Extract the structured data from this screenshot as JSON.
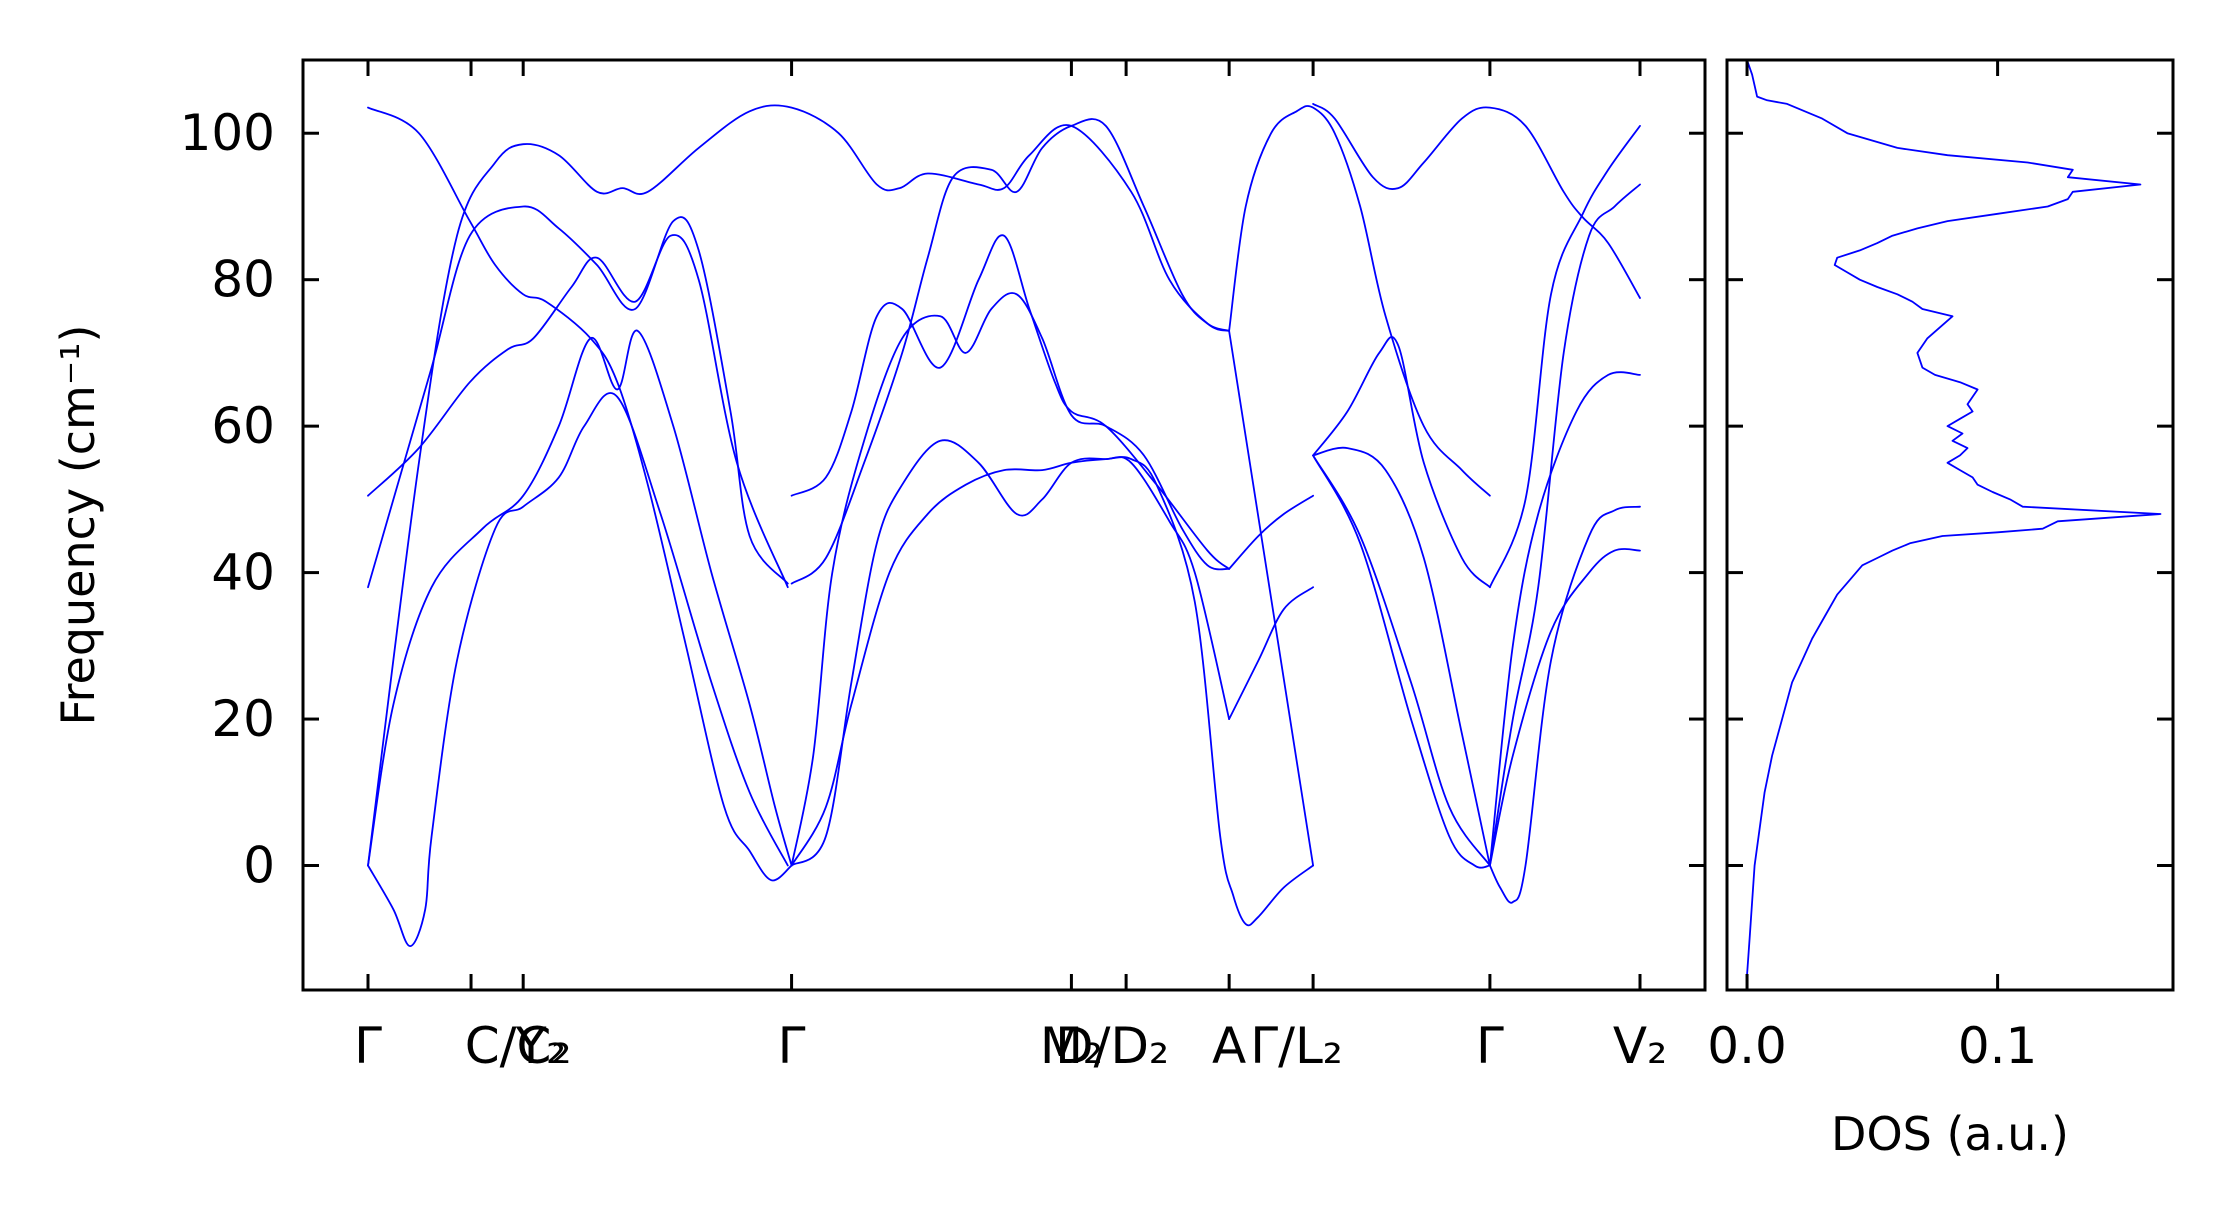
{
  "chart_data": [
    {
      "type": "line",
      "title": "",
      "xlabel": "",
      "ylabel": "Frequency (cm⁻¹)",
      "ylim": [
        -17,
        110
      ],
      "yticks": [
        0,
        20,
        40,
        60,
        80,
        100
      ],
      "line_color": "#0000ff",
      "grid": false,
      "x_range": [
        0,
        1
      ],
      "high_symmetry_points": [
        {
          "x": 0.0,
          "label": "Γ"
        },
        {
          "x": 0.081,
          "label": "C/C₂",
          "label_x": 0.118
        },
        {
          "x": 0.122,
          "label": "Y₂",
          "label_x": 0.136
        },
        {
          "x": 0.333,
          "label": "Γ"
        },
        {
          "x": 0.553,
          "label": "M₂",
          "label_x": 0.553
        },
        {
          "x": 0.596,
          "label": "D/D₂",
          "label_x": 0.585
        },
        {
          "x": 0.677,
          "label": "A"
        },
        {
          "x": 0.743,
          "label": "Γ/L₂",
          "label_x": 0.73
        },
        {
          "x": 0.882,
          "label": "Γ"
        },
        {
          "x": 1.0,
          "label": "V₂"
        }
      ],
      "bands": [
        [
          [
            0.0,
            103.5
          ],
          [
            0.04,
            100
          ],
          [
            0.08,
            88
          ],
          [
            0.1,
            82
          ],
          [
            0.122,
            78
          ],
          [
            0.14,
            77
          ],
          [
            0.175,
            72
          ],
          [
            0.196,
            66
          ],
          [
            0.22,
            52
          ],
          [
            0.25,
            30
          ],
          [
            0.28,
            8
          ],
          [
            0.3,
            2
          ],
          [
            0.317,
            -2
          ],
          [
            0.333,
            0
          ]
        ],
        [
          [
            0.0,
            50.5
          ],
          [
            0.04,
            57
          ],
          [
            0.08,
            66
          ],
          [
            0.11,
            70.5
          ],
          [
            0.13,
            72
          ],
          [
            0.16,
            79
          ],
          [
            0.18,
            83
          ],
          [
            0.21,
            77
          ],
          [
            0.238,
            86
          ],
          [
            0.26,
            80
          ],
          [
            0.29,
            55
          ],
          [
            0.33,
            38
          ]
        ],
        [
          [
            0.0,
            38
          ],
          [
            0.02,
            50
          ],
          [
            0.05,
            68
          ],
          [
            0.08,
            86
          ],
          [
            0.122,
            90
          ],
          [
            0.15,
            87
          ],
          [
            0.18,
            82
          ],
          [
            0.21,
            76
          ],
          [
            0.24,
            88
          ],
          [
            0.26,
            84
          ],
          [
            0.285,
            62
          ],
          [
            0.3,
            45
          ],
          [
            0.33,
            38.5
          ]
        ],
        [
          [
            0.0,
            0
          ],
          [
            0.02,
            22
          ],
          [
            0.05,
            38
          ],
          [
            0.09,
            46
          ],
          [
            0.122,
            50.5
          ],
          [
            0.15,
            60
          ],
          [
            0.175,
            72
          ],
          [
            0.196,
            65
          ],
          [
            0.212,
            73
          ],
          [
            0.24,
            60
          ],
          [
            0.27,
            40
          ],
          [
            0.3,
            22
          ],
          [
            0.32,
            8
          ],
          [
            0.333,
            0
          ]
        ],
        [
          [
            0.0,
            0
          ],
          [
            0.02,
            -6
          ],
          [
            0.033,
            -11
          ],
          [
            0.045,
            -6
          ],
          [
            0.05,
            4
          ],
          [
            0.07,
            28
          ],
          [
            0.1,
            46
          ],
          [
            0.122,
            49
          ],
          [
            0.15,
            53
          ],
          [
            0.17,
            60
          ],
          [
            0.196,
            64
          ],
          [
            0.23,
            48
          ],
          [
            0.27,
            25
          ],
          [
            0.3,
            10
          ],
          [
            0.33,
            0
          ]
        ],
        [
          [
            0.0,
            0
          ],
          [
            0.04,
            55
          ],
          [
            0.07,
            86
          ],
          [
            0.1,
            96
          ],
          [
            0.122,
            98.5
          ],
          [
            0.15,
            97
          ],
          [
            0.18,
            92
          ],
          [
            0.2,
            92.5
          ],
          [
            0.22,
            92
          ],
          [
            0.26,
            98
          ],
          [
            0.3,
            103
          ],
          [
            0.333,
            103.5
          ],
          [
            0.37,
            100
          ],
          [
            0.4,
            93
          ],
          [
            0.418,
            92.5
          ],
          [
            0.44,
            94.5
          ],
          [
            0.48,
            93
          ],
          [
            0.5,
            92.5
          ],
          [
            0.52,
            97
          ],
          [
            0.553,
            101
          ],
          [
            0.6,
            92
          ],
          [
            0.63,
            80
          ],
          [
            0.66,
            74
          ],
          [
            0.677,
            73
          ]
        ],
        [
          [
            0.333,
            50.5
          ],
          [
            0.36,
            53
          ],
          [
            0.38,
            62
          ],
          [
            0.4,
            75
          ],
          [
            0.42,
            76
          ],
          [
            0.45,
            68
          ],
          [
            0.48,
            80
          ],
          [
            0.5,
            86
          ],
          [
            0.52,
            76
          ],
          [
            0.54,
            66
          ],
          [
            0.553,
            62
          ],
          [
            0.58,
            60
          ],
          [
            0.62,
            52
          ],
          [
            0.66,
            43
          ],
          [
            0.677,
            40.5
          ]
        ],
        [
          [
            0.333,
            38.5
          ],
          [
            0.36,
            42
          ],
          [
            0.39,
            55
          ],
          [
            0.42,
            70
          ],
          [
            0.44,
            83
          ],
          [
            0.46,
            94
          ],
          [
            0.49,
            95
          ],
          [
            0.51,
            92
          ],
          [
            0.53,
            98
          ],
          [
            0.553,
            101
          ],
          [
            0.58,
            101
          ],
          [
            0.61,
            90
          ],
          [
            0.64,
            78
          ],
          [
            0.66,
            74
          ],
          [
            0.677,
            73
          ]
        ],
        [
          [
            0.333,
            0
          ],
          [
            0.35,
            15
          ],
          [
            0.365,
            40
          ],
          [
            0.39,
            58
          ],
          [
            0.42,
            72
          ],
          [
            0.45,
            75
          ],
          [
            0.47,
            70
          ],
          [
            0.49,
            76
          ],
          [
            0.51,
            78
          ],
          [
            0.53,
            72
          ],
          [
            0.553,
            61.5
          ],
          [
            0.58,
            60
          ],
          [
            0.61,
            56
          ],
          [
            0.64,
            46
          ],
          [
            0.66,
            41
          ],
          [
            0.677,
            40.5
          ]
        ],
        [
          [
            0.333,
            0
          ],
          [
            0.36,
            4
          ],
          [
            0.38,
            25
          ],
          [
            0.4,
            44
          ],
          [
            0.42,
            52
          ],
          [
            0.45,
            58
          ],
          [
            0.48,
            55
          ],
          [
            0.51,
            48
          ],
          [
            0.53,
            50
          ],
          [
            0.553,
            55
          ],
          [
            0.58,
            55.5
          ],
          [
            0.6,
            55
          ],
          [
            0.63,
            47
          ],
          [
            0.65,
            40
          ],
          [
            0.677,
            20
          ]
        ],
        [
          [
            0.333,
            0
          ],
          [
            0.36,
            8
          ],
          [
            0.38,
            22
          ],
          [
            0.41,
            40
          ],
          [
            0.44,
            48
          ],
          [
            0.47,
            52
          ],
          [
            0.5,
            54
          ],
          [
            0.53,
            54
          ],
          [
            0.553,
            55
          ],
          [
            0.58,
            55.5
          ],
          [
            0.6,
            55.5
          ],
          [
            0.62,
            52
          ],
          [
            0.65,
            36
          ],
          [
            0.67,
            4
          ],
          [
            0.68,
            -4
          ],
          [
            0.69,
            -8
          ],
          [
            0.7,
            -7
          ],
          [
            0.72,
            -3
          ],
          [
            0.743,
            0
          ]
        ],
        [
          [
            0.677,
            73
          ],
          [
            0.743,
            0
          ]
        ],
        [
          [
            0.677,
            40.5
          ],
          [
            0.7,
            45
          ],
          [
            0.72,
            48
          ],
          [
            0.743,
            50.5
          ]
        ],
        [
          [
            0.677,
            20
          ],
          [
            0.7,
            28
          ],
          [
            0.72,
            35
          ],
          [
            0.743,
            38
          ]
        ],
        [
          [
            0.677,
            73
          ],
          [
            0.69,
            90
          ],
          [
            0.71,
            100
          ],
          [
            0.73,
            103
          ],
          [
            0.743,
            103.5
          ],
          [
            0.76,
            100
          ],
          [
            0.78,
            90
          ],
          [
            0.8,
            75
          ],
          [
            0.83,
            60
          ],
          [
            0.86,
            54
          ],
          [
            0.882,
            50.5
          ]
        ],
        [
          [
            0.743,
            104
          ],
          [
            0.76,
            102
          ],
          [
            0.79,
            94
          ],
          [
            0.81,
            92.5
          ],
          [
            0.83,
            96
          ],
          [
            0.86,
            102
          ],
          [
            0.882,
            103.5
          ],
          [
            0.91,
            101
          ],
          [
            0.94,
            92
          ],
          [
            0.955,
            88.5
          ],
          [
            0.975,
            85
          ],
          [
            1.0,
            77.5
          ]
        ],
        [
          [
            0.743,
            56
          ],
          [
            0.77,
            62
          ],
          [
            0.795,
            70
          ],
          [
            0.81,
            71
          ],
          [
            0.83,
            55
          ],
          [
            0.86,
            42
          ],
          [
            0.882,
            38
          ]
        ],
        [
          [
            0.743,
            56
          ],
          [
            0.77,
            57
          ],
          [
            0.8,
            54
          ],
          [
            0.83,
            42
          ],
          [
            0.86,
            18
          ],
          [
            0.882,
            0
          ]
        ],
        [
          [
            0.743,
            56
          ],
          [
            0.78,
            45
          ],
          [
            0.82,
            25
          ],
          [
            0.85,
            8
          ],
          [
            0.882,
            0
          ]
        ],
        [
          [
            0.743,
            56
          ],
          [
            0.78,
            44
          ],
          [
            0.82,
            20
          ],
          [
            0.85,
            4
          ],
          [
            0.87,
            0
          ],
          [
            0.882,
            0
          ]
        ],
        [
          [
            0.882,
            0
          ],
          [
            0.89,
            -3
          ],
          [
            0.9,
            -5
          ],
          [
            0.91,
            0
          ],
          [
            0.93,
            28
          ],
          [
            0.96,
            45
          ],
          [
            0.98,
            48.5
          ],
          [
            1.0,
            49
          ]
        ],
        [
          [
            0.882,
            0
          ],
          [
            0.9,
            15
          ],
          [
            0.93,
            32
          ],
          [
            0.96,
            40
          ],
          [
            0.98,
            43
          ],
          [
            1.0,
            43
          ]
        ],
        [
          [
            0.882,
            0
          ],
          [
            0.9,
            20
          ],
          [
            0.92,
            38
          ],
          [
            0.94,
            70
          ],
          [
            0.96,
            86
          ],
          [
            0.98,
            90
          ],
          [
            1.0,
            93
          ]
        ],
        [
          [
            0.882,
            0
          ],
          [
            0.9,
            30
          ],
          [
            0.92,
            48
          ],
          [
            0.95,
            62
          ],
          [
            0.975,
            67
          ],
          [
            1.0,
            67
          ]
        ],
        [
          [
            0.882,
            38
          ],
          [
            0.91,
            50
          ],
          [
            0.93,
            78
          ],
          [
            0.955,
            89
          ],
          [
            0.975,
            95
          ],
          [
            1.0,
            101
          ]
        ]
      ]
    },
    {
      "type": "line",
      "title": "",
      "xlabel": "DOS (a.u.)",
      "ylabel": "",
      "xlim": [
        -0.008,
        0.17
      ],
      "ylim": [
        -17,
        110
      ],
      "xticks": [
        {
          "value": 0.0,
          "label": "0.0"
        },
        {
          "value": 0.1,
          "label": "0.1"
        }
      ],
      "line_color": "#0000ff",
      "grid": false,
      "x": [
        0.0,
        0.001,
        0.002,
        0.003,
        0.005,
        0.007,
        0.01,
        0.014,
        0.018,
        0.022,
        0.026,
        0.031,
        0.036,
        0.041,
        0.046,
        0.052,
        0.058,
        0.065,
        0.078,
        0.1,
        0.118,
        0.124,
        0.165,
        0.11,
        0.105,
        0.098,
        0.092,
        0.09,
        0.085,
        0.08,
        0.085,
        0.088,
        0.082,
        0.086,
        0.08,
        0.085,
        0.09,
        0.088,
        0.092,
        0.085,
        0.075,
        0.07,
        0.068,
        0.072,
        0.082,
        0.07,
        0.066,
        0.06,
        0.052,
        0.045,
        0.04,
        0.035,
        0.036,
        0.045,
        0.052,
        0.058,
        0.068,
        0.08,
        0.1,
        0.12,
        0.128,
        0.13,
        0.157,
        0.128,
        0.13,
        0.112,
        0.08,
        0.06,
        0.04,
        0.03,
        0.016,
        0.008,
        0.004,
        0.002,
        0.0
      ],
      "y": [
        -15,
        -10,
        -5,
        0,
        5,
        10,
        15,
        20,
        25,
        28,
        31,
        34,
        37,
        39,
        41,
        42,
        43,
        44,
        45,
        45.5,
        46,
        47,
        48,
        49,
        50,
        51,
        52,
        53,
        54,
        55,
        56,
        57,
        58,
        59,
        60,
        61,
        62,
        63,
        65,
        66,
        67,
        68,
        70,
        72,
        75,
        76,
        77,
        78,
        79,
        80,
        81,
        82,
        83,
        84,
        85,
        86,
        87,
        88,
        89,
        90,
        91,
        92,
        93,
        94,
        95,
        96,
        97,
        98,
        100,
        102,
        104,
        104.5,
        105,
        108,
        110
      ]
    }
  ]
}
